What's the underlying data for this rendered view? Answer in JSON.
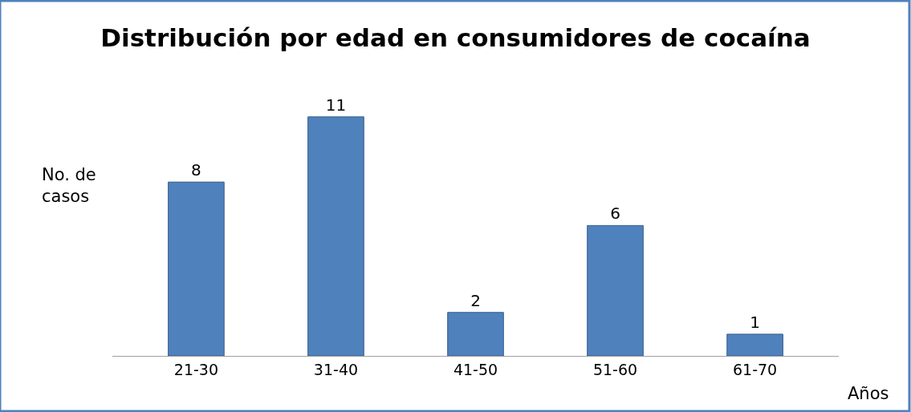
{
  "chart_data": {
    "type": "bar",
    "title": "Distribución por edad en consumidores de cocaína",
    "xlabel": "Años",
    "ylabel": "No. de casos",
    "categories": [
      "21-30",
      "31-40",
      "41-50",
      "51-60",
      "61-70"
    ],
    "values": [
      8,
      11,
      2,
      6,
      1
    ],
    "color": "#4f81bd",
    "data_labels": true,
    "legend": false
  }
}
